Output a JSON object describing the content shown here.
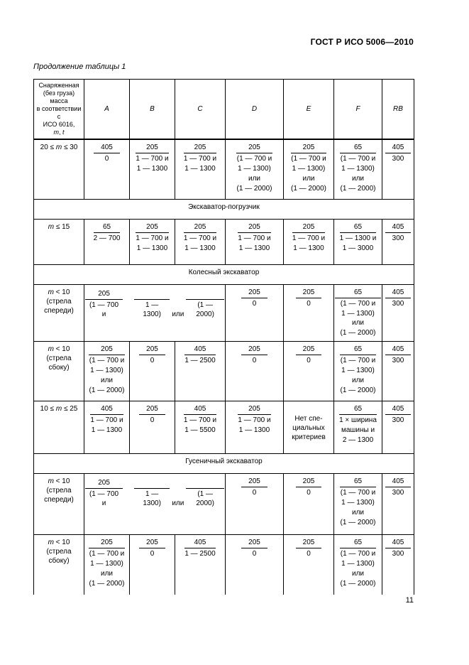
{
  "page": {
    "doc_code": "ГОСТ Р ИСО 5006—2010",
    "table_caption": "Продолжение таблицы 1",
    "page_number": "11"
  },
  "table": {
    "header": {
      "label_lines": [
        "Снаряженная",
        "(без груза)",
        "масса",
        "в соответствии с",
        "ИСО 6016,",
        "m, t"
      ],
      "columns": [
        "A",
        "B",
        "C",
        "D",
        "E",
        "F",
        "RB"
      ]
    },
    "rows": [
      {
        "type": "data",
        "label_lines": [
          "20 ≤ m ≤ 30"
        ],
        "cells": [
          {
            "kind": "frac",
            "num": "405",
            "den": [
              "0"
            ]
          },
          {
            "kind": "frac",
            "num": "205",
            "den": [
              "1 — 700 и",
              "1 — 1300"
            ]
          },
          {
            "kind": "frac",
            "num": "205",
            "den": [
              "1 — 700 и",
              "1 — 1300"
            ]
          },
          {
            "kind": "frac",
            "num": "205",
            "den": [
              "(1 — 700 и",
              "1 — 1300)",
              "или",
              "(1 — 2000)"
            ]
          },
          {
            "kind": "frac",
            "num": "205",
            "den": [
              "(1 — 700 и",
              "1 — 1300)",
              "или",
              "(1 — 2000)"
            ]
          },
          {
            "kind": "frac",
            "num": "65",
            "den": [
              "(1 — 700 и",
              "1 — 1300)",
              "или",
              "(1 — 2000)"
            ]
          },
          {
            "kind": "frac",
            "num": "405",
            "den": [
              "300"
            ]
          }
        ]
      },
      {
        "type": "section",
        "label": "Экскаватор-погрузчик"
      },
      {
        "type": "data",
        "label_lines": [
          "m ≤ 15"
        ],
        "cells": [
          {
            "kind": "frac",
            "num": "65",
            "den": [
              "2 — 700"
            ]
          },
          {
            "kind": "frac",
            "num": "205",
            "den": [
              "1 — 700 и",
              "1 — 1300"
            ]
          },
          {
            "kind": "frac",
            "num": "205",
            "den": [
              "1 — 700 и",
              "1 — 1300"
            ]
          },
          {
            "kind": "frac",
            "num": "205",
            "den": [
              "1 — 700 и",
              "1 — 1300"
            ]
          },
          {
            "kind": "frac",
            "num": "205",
            "den": [
              "1 — 700 и",
              "1 — 1300"
            ]
          },
          {
            "kind": "frac",
            "num": "65",
            "den": [
              "1 — 1300 и",
              "1 — 3000"
            ]
          },
          {
            "kind": "frac",
            "num": "405",
            "den": [
              "300"
            ]
          }
        ]
      },
      {
        "type": "section",
        "label": "Колесный экскаватор"
      },
      {
        "type": "data",
        "label_lines": [
          "m < 10",
          "(стрела",
          "спереди)"
        ],
        "cells": [
          {
            "kind": "splitfrac",
            "colspan": 3,
            "num": "205",
            "first_seg": "(1 — 700 и",
            "segments": [
              {
                "text": "1 — 1300)",
                "line": true
              },
              {
                "text": "или",
                "line": false
              },
              {
                "text": "(1 — 2000)",
                "line": true
              }
            ]
          },
          {
            "kind": "frac",
            "num": "205",
            "den": [
              "0"
            ]
          },
          {
            "kind": "frac",
            "num": "205",
            "den": [
              "0"
            ]
          },
          {
            "kind": "frac",
            "num": "65",
            "den": [
              "(1 — 700 и",
              "1 — 1300) или",
              "(1 — 2000)"
            ]
          },
          {
            "kind": "frac",
            "num": "405",
            "den": [
              "300"
            ]
          }
        ]
      },
      {
        "type": "data",
        "label_lines": [
          "m < 10",
          "(стрела",
          "сбоку)"
        ],
        "cells": [
          {
            "kind": "frac",
            "num": "205",
            "den": [
              "(1 — 700 и",
              "1 — 1300)",
              "или",
              "(1 — 2000)"
            ]
          },
          {
            "kind": "frac",
            "num": "205",
            "den": [
              "0"
            ]
          },
          {
            "kind": "frac",
            "num": "405",
            "den": [
              "1 — 2500"
            ]
          },
          {
            "kind": "frac",
            "num": "205",
            "den": [
              "0"
            ]
          },
          {
            "kind": "frac",
            "num": "205",
            "den": [
              "0"
            ]
          },
          {
            "kind": "frac",
            "num": "65",
            "den": [
              "(1 — 700 и",
              "1 — 1300)",
              "или",
              "(1 — 2000)"
            ]
          },
          {
            "kind": "frac",
            "num": "405",
            "den": [
              "300"
            ]
          }
        ]
      },
      {
        "type": "data",
        "label_lines": [
          "10 ≤ m ≤ 25"
        ],
        "cells": [
          {
            "kind": "frac",
            "num": "405",
            "den": [
              "1 — 700 и",
              "1 — 1300"
            ]
          },
          {
            "kind": "frac",
            "num": "205",
            "den": [
              "0"
            ]
          },
          {
            "kind": "frac",
            "num": "405",
            "den": [
              "1 — 700 и",
              "1 — 5500"
            ]
          },
          {
            "kind": "frac",
            "num": "205",
            "den": [
              "1 — 700 и",
              "1 — 1300"
            ]
          },
          {
            "kind": "text",
            "lines": [
              "Нет спе-",
              "циальных",
              "критериев"
            ]
          },
          {
            "kind": "frac",
            "num": "65",
            "den": [
              "1 × ширина",
              "машины и",
              "2 — 1300"
            ]
          },
          {
            "kind": "frac",
            "num": "405",
            "den": [
              "300"
            ]
          }
        ]
      },
      {
        "type": "section",
        "label": "Гусеничный экскаватор"
      },
      {
        "type": "data",
        "label_lines": [
          "m < 10",
          "(стрела",
          "спереди)"
        ],
        "cells": [
          {
            "kind": "splitfrac",
            "colspan": 3,
            "num": "205",
            "first_seg": "(1 — 700 и",
            "segments": [
              {
                "text": "1 — 1300)",
                "line": true
              },
              {
                "text": "или",
                "line": false
              },
              {
                "text": "(1 — 2000)",
                "line": true
              }
            ]
          },
          {
            "kind": "frac",
            "num": "205",
            "den": [
              "0"
            ]
          },
          {
            "kind": "frac",
            "num": "205",
            "den": [
              "0"
            ]
          },
          {
            "kind": "frac",
            "num": "65",
            "den": [
              "(1 — 700 и",
              "1 — 1300)",
              "или",
              "(1 — 2000)"
            ]
          },
          {
            "kind": "frac",
            "num": "405",
            "den": [
              "300"
            ]
          }
        ]
      },
      {
        "type": "data",
        "label_lines": [
          "m < 10",
          "(стрела",
          "сбоку)"
        ],
        "cells": [
          {
            "kind": "frac",
            "num": "205",
            "den": [
              "(1 — 700 и",
              "1 — 1300)",
              "или",
              "(1 — 2000)"
            ]
          },
          {
            "kind": "frac",
            "num": "205",
            "den": [
              "0"
            ]
          },
          {
            "kind": "frac",
            "num": "405",
            "den": [
              "1 — 2500"
            ]
          },
          {
            "kind": "frac",
            "num": "205",
            "den": [
              "0"
            ]
          },
          {
            "kind": "frac",
            "num": "205",
            "den": [
              "0"
            ]
          },
          {
            "kind": "frac",
            "num": "65",
            "den": [
              "(1 — 700 и",
              "1 — 1300)",
              "или",
              "(1 — 2000)"
            ]
          },
          {
            "kind": "frac",
            "num": "405",
            "den": [
              "300"
            ]
          }
        ]
      }
    ]
  }
}
